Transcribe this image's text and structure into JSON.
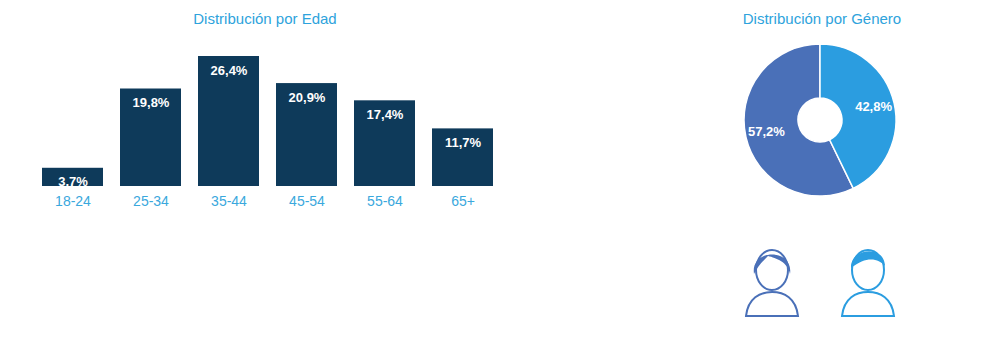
{
  "chart_data": [
    {
      "type": "bar",
      "title": "Distribución por Edad",
      "categories": [
        "18-24",
        "25-34",
        "35-44",
        "45-54",
        "55-64",
        "65+"
      ],
      "values": [
        3.7,
        19.8,
        26.4,
        20.9,
        17.4,
        11.7
      ],
      "value_labels": [
        "3,7%",
        "19,8%",
        "26,4%",
        "20,9%",
        "17,4%",
        "11,7%"
      ],
      "color": "#0e3a5a",
      "data_labels": true,
      "tick_labels": "x"
    },
    {
      "type": "pie",
      "title": "Distribución por Género",
      "values": [
        57.2,
        42.8
      ],
      "value_labels": [
        "57,2%",
        "42,8%"
      ],
      "colors": [
        "#4a70b8",
        "#2b9de0"
      ],
      "data_labels": true
    }
  ]
}
